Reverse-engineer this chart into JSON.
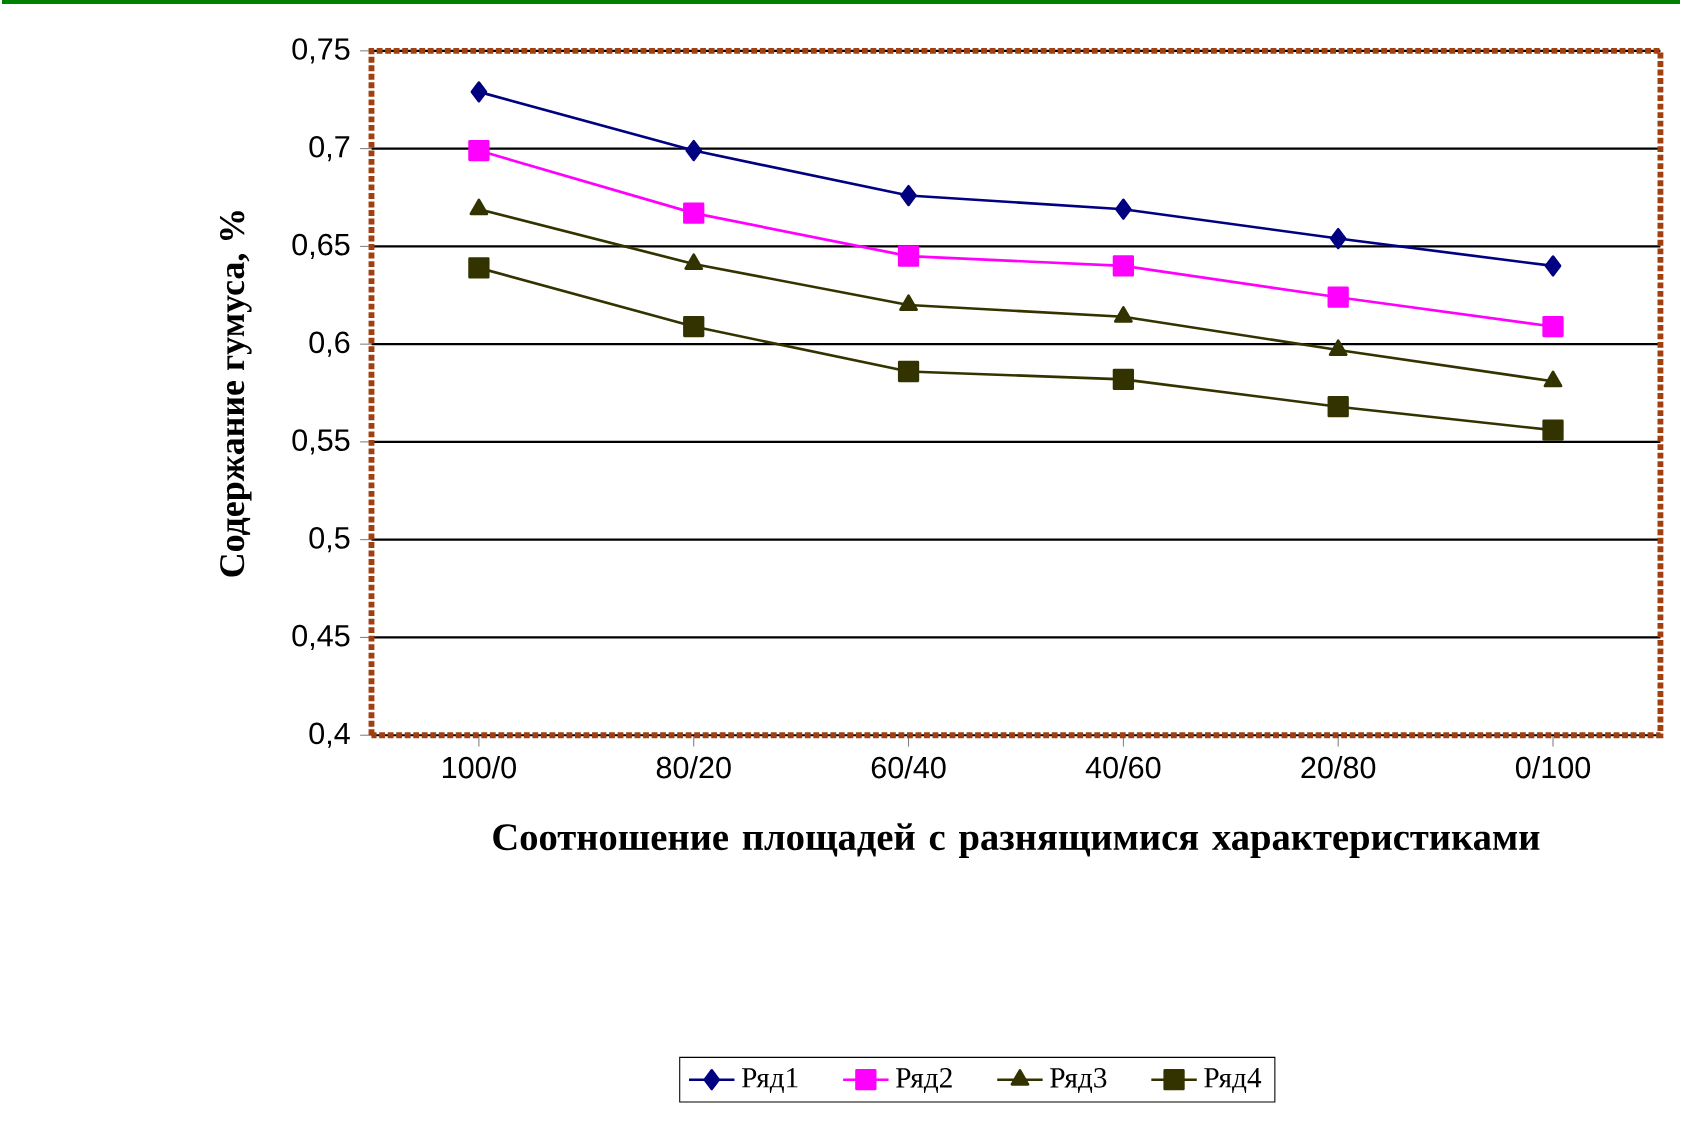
{
  "chart_data": {
    "type": "line",
    "xlabel": "Соотношение площадей с разнящимися характеристиками",
    "ylabel": "Содержание гумуса, %",
    "categories": [
      "100/0",
      "80/20",
      "60/40",
      "40/60",
      "20/80",
      "0/100"
    ],
    "series": [
      {
        "name": "Ряд1",
        "color": "#000080",
        "marker": "diamond",
        "values": [
          0.729,
          0.699,
          0.676,
          0.669,
          0.654,
          0.64
        ]
      },
      {
        "name": "Ряд2",
        "color": "#ff00ff",
        "marker": "square",
        "values": [
          0.699,
          0.667,
          0.645,
          0.64,
          0.624,
          0.609
        ]
      },
      {
        "name": "Ряд3",
        "color": "#333300",
        "marker": "triangle",
        "values": [
          0.669,
          0.641,
          0.62,
          0.614,
          0.597,
          0.581
        ]
      },
      {
        "name": "Ряд4",
        "color": "#333300",
        "marker": "square",
        "values": [
          0.639,
          0.609,
          0.586,
          0.582,
          0.568,
          0.556
        ]
      }
    ],
    "ylim": [
      0.4,
      0.75
    ],
    "yticks": [
      {
        "value": 0.4,
        "label": "0,4"
      },
      {
        "value": 0.45,
        "label": "0,45"
      },
      {
        "value": 0.5,
        "label": "0,5"
      },
      {
        "value": 0.55,
        "label": "0,55"
      },
      {
        "value": 0.6,
        "label": "0,6"
      },
      {
        "value": 0.65,
        "label": "0,65"
      },
      {
        "value": 0.7,
        "label": "0,7"
      },
      {
        "value": 0.75,
        "label": "0,75"
      }
    ],
    "grid": "y",
    "legend": "bottom",
    "line_style": "solid"
  }
}
